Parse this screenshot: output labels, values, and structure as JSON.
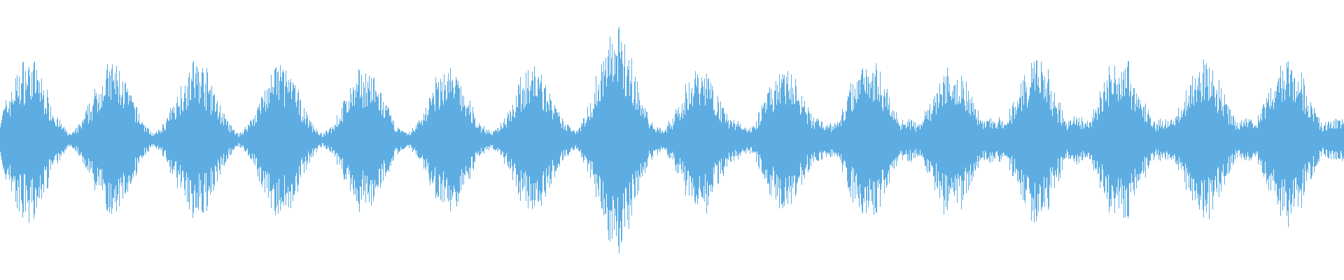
{
  "chart_data": {
    "type": "waveform",
    "title": "",
    "xlabel": "",
    "ylabel": "",
    "ylim": [
      -1,
      1
    ],
    "grid": false,
    "axes_visible": false,
    "color": "#5DADE2",
    "background": "#FFFFFF",
    "burst_peak_amplitudes": [
      0.63,
      0.6,
      0.62,
      0.6,
      0.55,
      0.57,
      0.58,
      0.85,
      0.57,
      0.55,
      0.66,
      0.6,
      0.62,
      0.67,
      0.62,
      0.67
    ],
    "quiet_amplitude": 0.18
  }
}
